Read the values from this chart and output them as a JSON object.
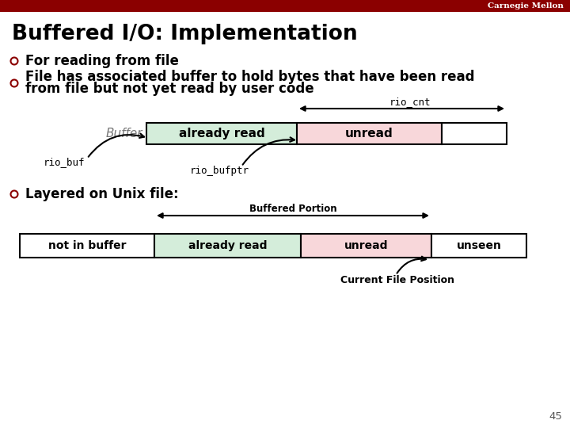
{
  "title": "Buffered I/O: Implementation",
  "bg_color": "#ffffff",
  "header_color": "#8B0000",
  "header_text": "Carnegie Mellon",
  "header_text_color": "#ffffff",
  "title_color": "#000000",
  "bullet_color": "#8B0000",
  "bullet1": "For reading from file",
  "bullet2_line1": "File has associated buffer to hold bytes that have been read",
  "bullet2_line2": "from file but not yet read by user code",
  "bullet3": "Layered on Unix file:",
  "buffer_label": "Buffer",
  "rio_buf_label": "rio_buf",
  "rio_bufptr_label": "rio_bufptr",
  "rio_cnt_label": "rio_cnt",
  "already_read_color": "#d4edda",
  "unread_color": "#f8d7da",
  "white_color": "#ffffff",
  "box_edge_color": "#000000",
  "not_in_buffer_label": "not in buffer",
  "already_read_label": "already read",
  "unread_label": "unread",
  "unseen_label": "unseen",
  "buffered_portion_label": "Buffered Portion",
  "current_file_position_label": "Current File Position",
  "page_number": "45"
}
